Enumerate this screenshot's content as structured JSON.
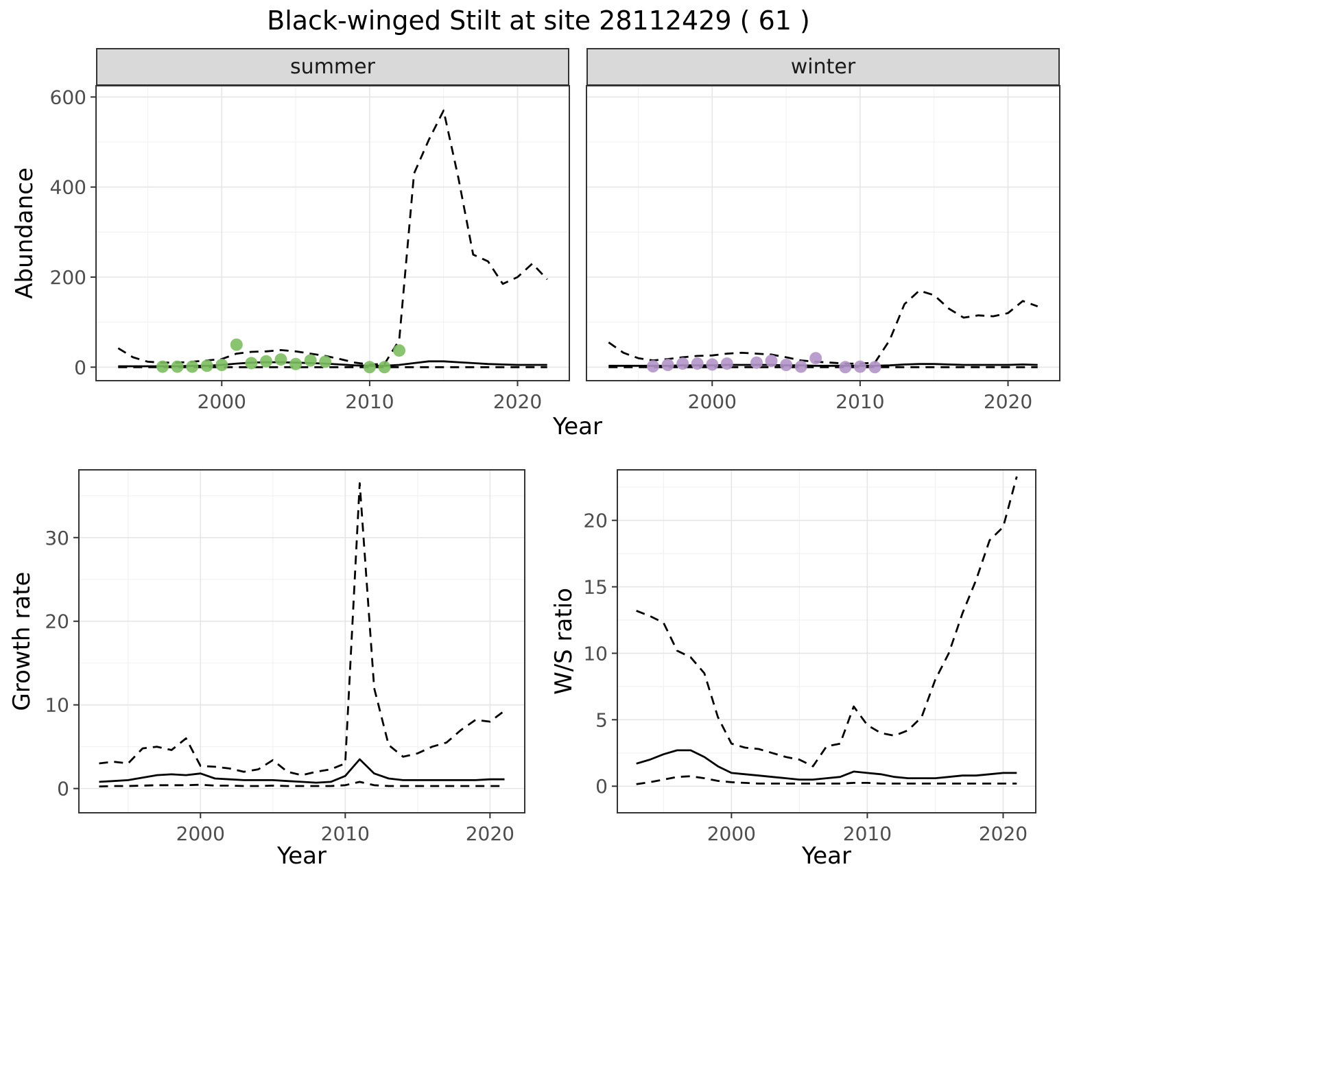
{
  "title": "Black-winged Stilt at site 28112429 ( 61 )",
  "colors": {
    "line": "#000000",
    "panel_border": "#333333",
    "grid_major": "#e6e6e6",
    "grid_minor": "#f2f2f2",
    "tick_text": "#4d4d4d",
    "strip_bg": "#d9d9d9",
    "summer_point": "#7cbe5f",
    "winter_point": "#b394c9"
  },
  "chart_data": [
    {
      "id": "abundance-summer",
      "type": "line",
      "facet_label": "summer",
      "ylabel": "Abundance",
      "xlabel": "Year",
      "xlim": [
        1991.5,
        2023.5
      ],
      "ylim": [
        -30,
        625
      ],
      "xticks": [
        2000,
        2010,
        2020
      ],
      "yticks": [
        0,
        200,
        400,
        600
      ],
      "series": [
        {
          "name": "upper-ci",
          "style": "dashed",
          "x": [
            1993,
            1994,
            1995,
            1996,
            1997,
            1998,
            1999,
            2000,
            2001,
            2002,
            2003,
            2004,
            2005,
            2006,
            2007,
            2008,
            2009,
            2010,
            2011,
            2012,
            2013,
            2014,
            2015,
            2016,
            2017,
            2018,
            2019,
            2020,
            2021,
            2022
          ],
          "y": [
            42,
            22,
            12,
            10,
            10,
            12,
            15,
            18,
            30,
            34,
            35,
            38,
            35,
            30,
            25,
            18,
            10,
            6,
            7,
            60,
            430,
            505,
            570,
            420,
            250,
            235,
            185,
            200,
            230,
            195
          ]
        },
        {
          "name": "fit",
          "style": "solid",
          "x": [
            1993,
            1994,
            1995,
            1996,
            1997,
            1998,
            1999,
            2000,
            2001,
            2002,
            2003,
            2004,
            2005,
            2006,
            2007,
            2008,
            2009,
            2010,
            2011,
            2012,
            2013,
            2014,
            2015,
            2016,
            2017,
            2018,
            2019,
            2020,
            2021,
            2022
          ],
          "y": [
            2,
            2,
            2,
            2,
            2,
            3,
            3,
            5,
            8,
            10,
            11,
            11,
            10,
            9,
            8,
            6,
            4,
            3,
            3,
            5,
            9,
            13,
            13,
            11,
            9,
            7,
            6,
            5,
            5,
            5
          ]
        },
        {
          "name": "lower-ci",
          "style": "dashed",
          "x": [
            1993,
            1994,
            1995,
            1996,
            1997,
            1998,
            1999,
            2000,
            2001,
            2002,
            2003,
            2004,
            2005,
            2006,
            2007,
            2008,
            2009,
            2010,
            2011,
            2012,
            2013,
            2014,
            2015,
            2016,
            2017,
            2018,
            2019,
            2020,
            2021,
            2022
          ],
          "y": [
            0,
            0,
            0,
            0,
            0,
            0,
            0,
            0,
            0,
            0,
            0,
            0,
            0,
            0,
            0,
            0,
            0,
            0,
            0,
            0,
            0,
            0,
            0,
            0,
            0,
            0,
            0,
            0,
            0,
            0
          ]
        },
        {
          "name": "observations",
          "style": "points",
          "color": "#7cbe5f",
          "x": [
            1996,
            1997,
            1998,
            1999,
            2000,
            2001,
            2002,
            2003,
            2004,
            2005,
            2006,
            2007,
            2010,
            2011,
            2012
          ],
          "y": [
            1,
            1,
            1,
            3,
            5,
            50,
            9,
            13,
            17,
            7,
            15,
            12,
            0,
            0,
            37
          ]
        }
      ]
    },
    {
      "id": "abundance-winter",
      "type": "line",
      "facet_label": "winter",
      "ylabel": "",
      "xlabel": "Year",
      "xlim": [
        1991.5,
        2023.5
      ],
      "ylim": [
        -30,
        625
      ],
      "xticks": [
        2000,
        2010,
        2020
      ],
      "yticks": [
        0,
        200,
        400,
        600
      ],
      "series": [
        {
          "name": "upper-ci",
          "style": "dashed",
          "x": [
            1993,
            1994,
            1995,
            1996,
            1997,
            1998,
            1999,
            2000,
            2001,
            2002,
            2003,
            2004,
            2005,
            2006,
            2007,
            2008,
            2009,
            2010,
            2011,
            2012,
            2013,
            2014,
            2015,
            2016,
            2017,
            2018,
            2019,
            2020,
            2021,
            2022
          ],
          "y": [
            55,
            32,
            20,
            15,
            18,
            22,
            25,
            26,
            30,
            32,
            30,
            28,
            22,
            15,
            12,
            10,
            8,
            8,
            10,
            60,
            140,
            170,
            160,
            130,
            110,
            115,
            113,
            120,
            147,
            135
          ]
        },
        {
          "name": "fit",
          "style": "solid",
          "x": [
            1993,
            1994,
            1995,
            1996,
            1997,
            1998,
            1999,
            2000,
            2001,
            2002,
            2003,
            2004,
            2005,
            2006,
            2007,
            2008,
            2009,
            2010,
            2011,
            2012,
            2013,
            2014,
            2015,
            2016,
            2017,
            2018,
            2019,
            2020,
            2021,
            2022
          ],
          "y": [
            3,
            3,
            3,
            3,
            3,
            4,
            4,
            4,
            5,
            5,
            5,
            5,
            4,
            4,
            3,
            3,
            3,
            3,
            3,
            4,
            6,
            7,
            7,
            6,
            5,
            5,
            5,
            5,
            6,
            5
          ]
        },
        {
          "name": "lower-ci",
          "style": "dashed",
          "x": [
            1993,
            1994,
            1995,
            1996,
            1997,
            1998,
            1999,
            2000,
            2001,
            2002,
            2003,
            2004,
            2005,
            2006,
            2007,
            2008,
            2009,
            2010,
            2011,
            2012,
            2013,
            2014,
            2015,
            2016,
            2017,
            2018,
            2019,
            2020,
            2021,
            2022
          ],
          "y": [
            0,
            0,
            0,
            0,
            0,
            0,
            0,
            0,
            0,
            0,
            0,
            0,
            0,
            0,
            0,
            0,
            0,
            0,
            0,
            0,
            0,
            0,
            0,
            0,
            0,
            0,
            0,
            0,
            0,
            0
          ]
        },
        {
          "name": "observations",
          "style": "points",
          "color": "#b394c9",
          "x": [
            1996,
            1997,
            1998,
            1999,
            2000,
            2001,
            2003,
            2004,
            2005,
            2006,
            2007,
            2009,
            2010,
            2011
          ],
          "y": [
            2,
            5,
            8,
            8,
            6,
            8,
            10,
            14,
            5,
            1,
            20,
            0,
            1,
            0
          ]
        }
      ]
    },
    {
      "id": "growth-rate",
      "type": "line",
      "facet_label": "",
      "ylabel": "Growth rate",
      "xlabel": "Year",
      "xlim": [
        1991.6,
        2022.4
      ],
      "ylim": [
        -2.9,
        38.1
      ],
      "xticks": [
        2000,
        2010,
        2020
      ],
      "yticks": [
        0,
        10,
        20,
        30
      ],
      "series": [
        {
          "name": "upper-ci",
          "style": "dashed",
          "x": [
            1993,
            1994,
            1995,
            1996,
            1997,
            1998,
            1999,
            2000,
            2001,
            2002,
            2003,
            2004,
            2005,
            2006,
            2007,
            2008,
            2009,
            2010,
            2011,
            2012,
            2013,
            2014,
            2015,
            2016,
            2017,
            2018,
            2019,
            2020,
            2021
          ],
          "y": [
            3.0,
            3.2,
            3.0,
            4.8,
            5.0,
            4.6,
            6.0,
            2.7,
            2.6,
            2.4,
            2.0,
            2.3,
            3.4,
            2.0,
            1.6,
            2.0,
            2.3,
            3.0,
            36.5,
            12.0,
            5.2,
            3.8,
            4.2,
            5.0,
            5.5,
            7.0,
            8.2,
            8.0,
            9.3
          ]
        },
        {
          "name": "fit",
          "style": "solid",
          "x": [
            1993,
            1994,
            1995,
            1996,
            1997,
            1998,
            1999,
            2000,
            2001,
            2002,
            2003,
            2004,
            2005,
            2006,
            2007,
            2008,
            2009,
            2010,
            2011,
            2012,
            2013,
            2014,
            2015,
            2016,
            2017,
            2018,
            2019,
            2020,
            2021
          ],
          "y": [
            0.8,
            0.9,
            1.0,
            1.3,
            1.6,
            1.7,
            1.6,
            1.8,
            1.2,
            1.1,
            1.0,
            1.0,
            1.0,
            0.9,
            0.8,
            0.7,
            0.8,
            1.5,
            3.5,
            1.8,
            1.2,
            1.0,
            1.0,
            1.0,
            1.0,
            1.0,
            1.0,
            1.1,
            1.1
          ]
        },
        {
          "name": "lower-ci",
          "style": "dashed",
          "x": [
            1993,
            1994,
            1995,
            1996,
            1997,
            1998,
            1999,
            2000,
            2001,
            2002,
            2003,
            2004,
            2005,
            2006,
            2007,
            2008,
            2009,
            2010,
            2011,
            2012,
            2013,
            2014,
            2015,
            2016,
            2017,
            2018,
            2019,
            2020,
            2021
          ],
          "y": [
            0.25,
            0.3,
            0.3,
            0.35,
            0.4,
            0.4,
            0.4,
            0.45,
            0.35,
            0.35,
            0.3,
            0.3,
            0.35,
            0.3,
            0.3,
            0.3,
            0.3,
            0.4,
            0.8,
            0.4,
            0.3,
            0.3,
            0.3,
            0.3,
            0.3,
            0.3,
            0.3,
            0.3,
            0.3
          ]
        }
      ]
    },
    {
      "id": "ws-ratio",
      "type": "line",
      "facet_label": "",
      "ylabel": "W/S ratio",
      "xlabel": "Year",
      "xlim": [
        1991.6,
        2022.4
      ],
      "ylim": [
        -2.0,
        23.8
      ],
      "xticks": [
        2000,
        2010,
        2020
      ],
      "yticks": [
        0,
        5,
        10,
        15,
        20
      ],
      "series": [
        {
          "name": "upper-ci",
          "style": "dashed",
          "x": [
            1993,
            1994,
            1995,
            1996,
            1997,
            1998,
            1999,
            2000,
            2001,
            2002,
            2003,
            2004,
            2005,
            2006,
            2007,
            2008,
            2009,
            2010,
            2011,
            2012,
            2013,
            2014,
            2015,
            2016,
            2017,
            2018,
            2019,
            2020,
            2021
          ],
          "y": [
            13.2,
            12.8,
            12.3,
            10.2,
            9.7,
            8.5,
            5.2,
            3.2,
            2.9,
            2.8,
            2.5,
            2.2,
            2.0,
            1.5,
            3.0,
            3.2,
            6.0,
            4.6,
            4.0,
            3.8,
            4.2,
            5.2,
            8.0,
            10.0,
            13.0,
            15.5,
            18.5,
            19.5,
            23.3
          ]
        },
        {
          "name": "fit",
          "style": "solid",
          "x": [
            1993,
            1994,
            1995,
            1996,
            1997,
            1998,
            1999,
            2000,
            2001,
            2002,
            2003,
            2004,
            2005,
            2006,
            2007,
            2008,
            2009,
            2010,
            2011,
            2012,
            2013,
            2014,
            2015,
            2016,
            2017,
            2018,
            2019,
            2020,
            2021
          ],
          "y": [
            1.7,
            2.0,
            2.4,
            2.7,
            2.7,
            2.2,
            1.5,
            1.0,
            0.9,
            0.8,
            0.7,
            0.6,
            0.5,
            0.5,
            0.6,
            0.7,
            1.1,
            1.0,
            0.9,
            0.7,
            0.6,
            0.6,
            0.6,
            0.7,
            0.8,
            0.8,
            0.9,
            1.0,
            1.0
          ]
        },
        {
          "name": "lower-ci",
          "style": "dashed",
          "x": [
            1993,
            1994,
            1995,
            1996,
            1997,
            1998,
            1999,
            2000,
            2001,
            2002,
            2003,
            2004,
            2005,
            2006,
            2007,
            2008,
            2009,
            2010,
            2011,
            2012,
            2013,
            2014,
            2015,
            2016,
            2017,
            2018,
            2019,
            2020,
            2021
          ],
          "y": [
            0.15,
            0.3,
            0.5,
            0.7,
            0.75,
            0.6,
            0.4,
            0.3,
            0.25,
            0.2,
            0.2,
            0.2,
            0.2,
            0.2,
            0.2,
            0.2,
            0.25,
            0.25,
            0.2,
            0.2,
            0.2,
            0.2,
            0.2,
            0.2,
            0.2,
            0.2,
            0.2,
            0.2,
            0.2
          ]
        }
      ]
    }
  ]
}
